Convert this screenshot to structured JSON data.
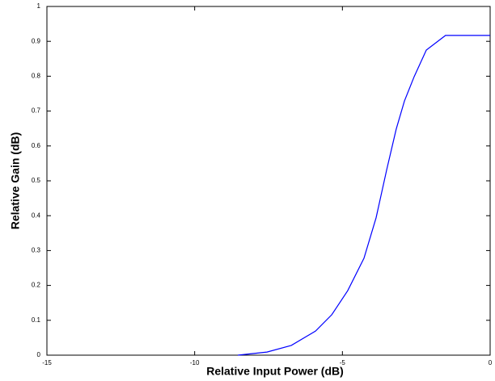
{
  "chart_data": {
    "type": "line",
    "x_label": "Relative Input Power (dB)",
    "y_label": "Relative Gain (dB)",
    "x": [
      -8.54,
      -7.55,
      -6.73,
      -5.91,
      -5.36,
      -4.82,
      -4.27,
      -3.86,
      -3.5,
      -3.18,
      -2.9,
      -2.57,
      -2.16,
      -1.51,
      0
    ],
    "series": [
      {
        "color": "#0000ff",
        "values": [
          0,
          0.009,
          0.028,
          0.069,
          0.116,
          0.185,
          0.278,
          0.394,
          0.532,
          0.648,
          0.729,
          0.799,
          0.875,
          0.917,
          0.917
        ]
      }
    ],
    "xlim": [
      -15,
      0
    ],
    "xticks": [
      -15,
      -10,
      -5,
      0
    ],
    "ylim": [
      0,
      1
    ],
    "yticks": [
      0,
      0.1,
      0.2,
      0.3,
      0.4,
      0.5,
      0.6,
      0.7,
      0.8,
      0.9,
      1
    ]
  }
}
